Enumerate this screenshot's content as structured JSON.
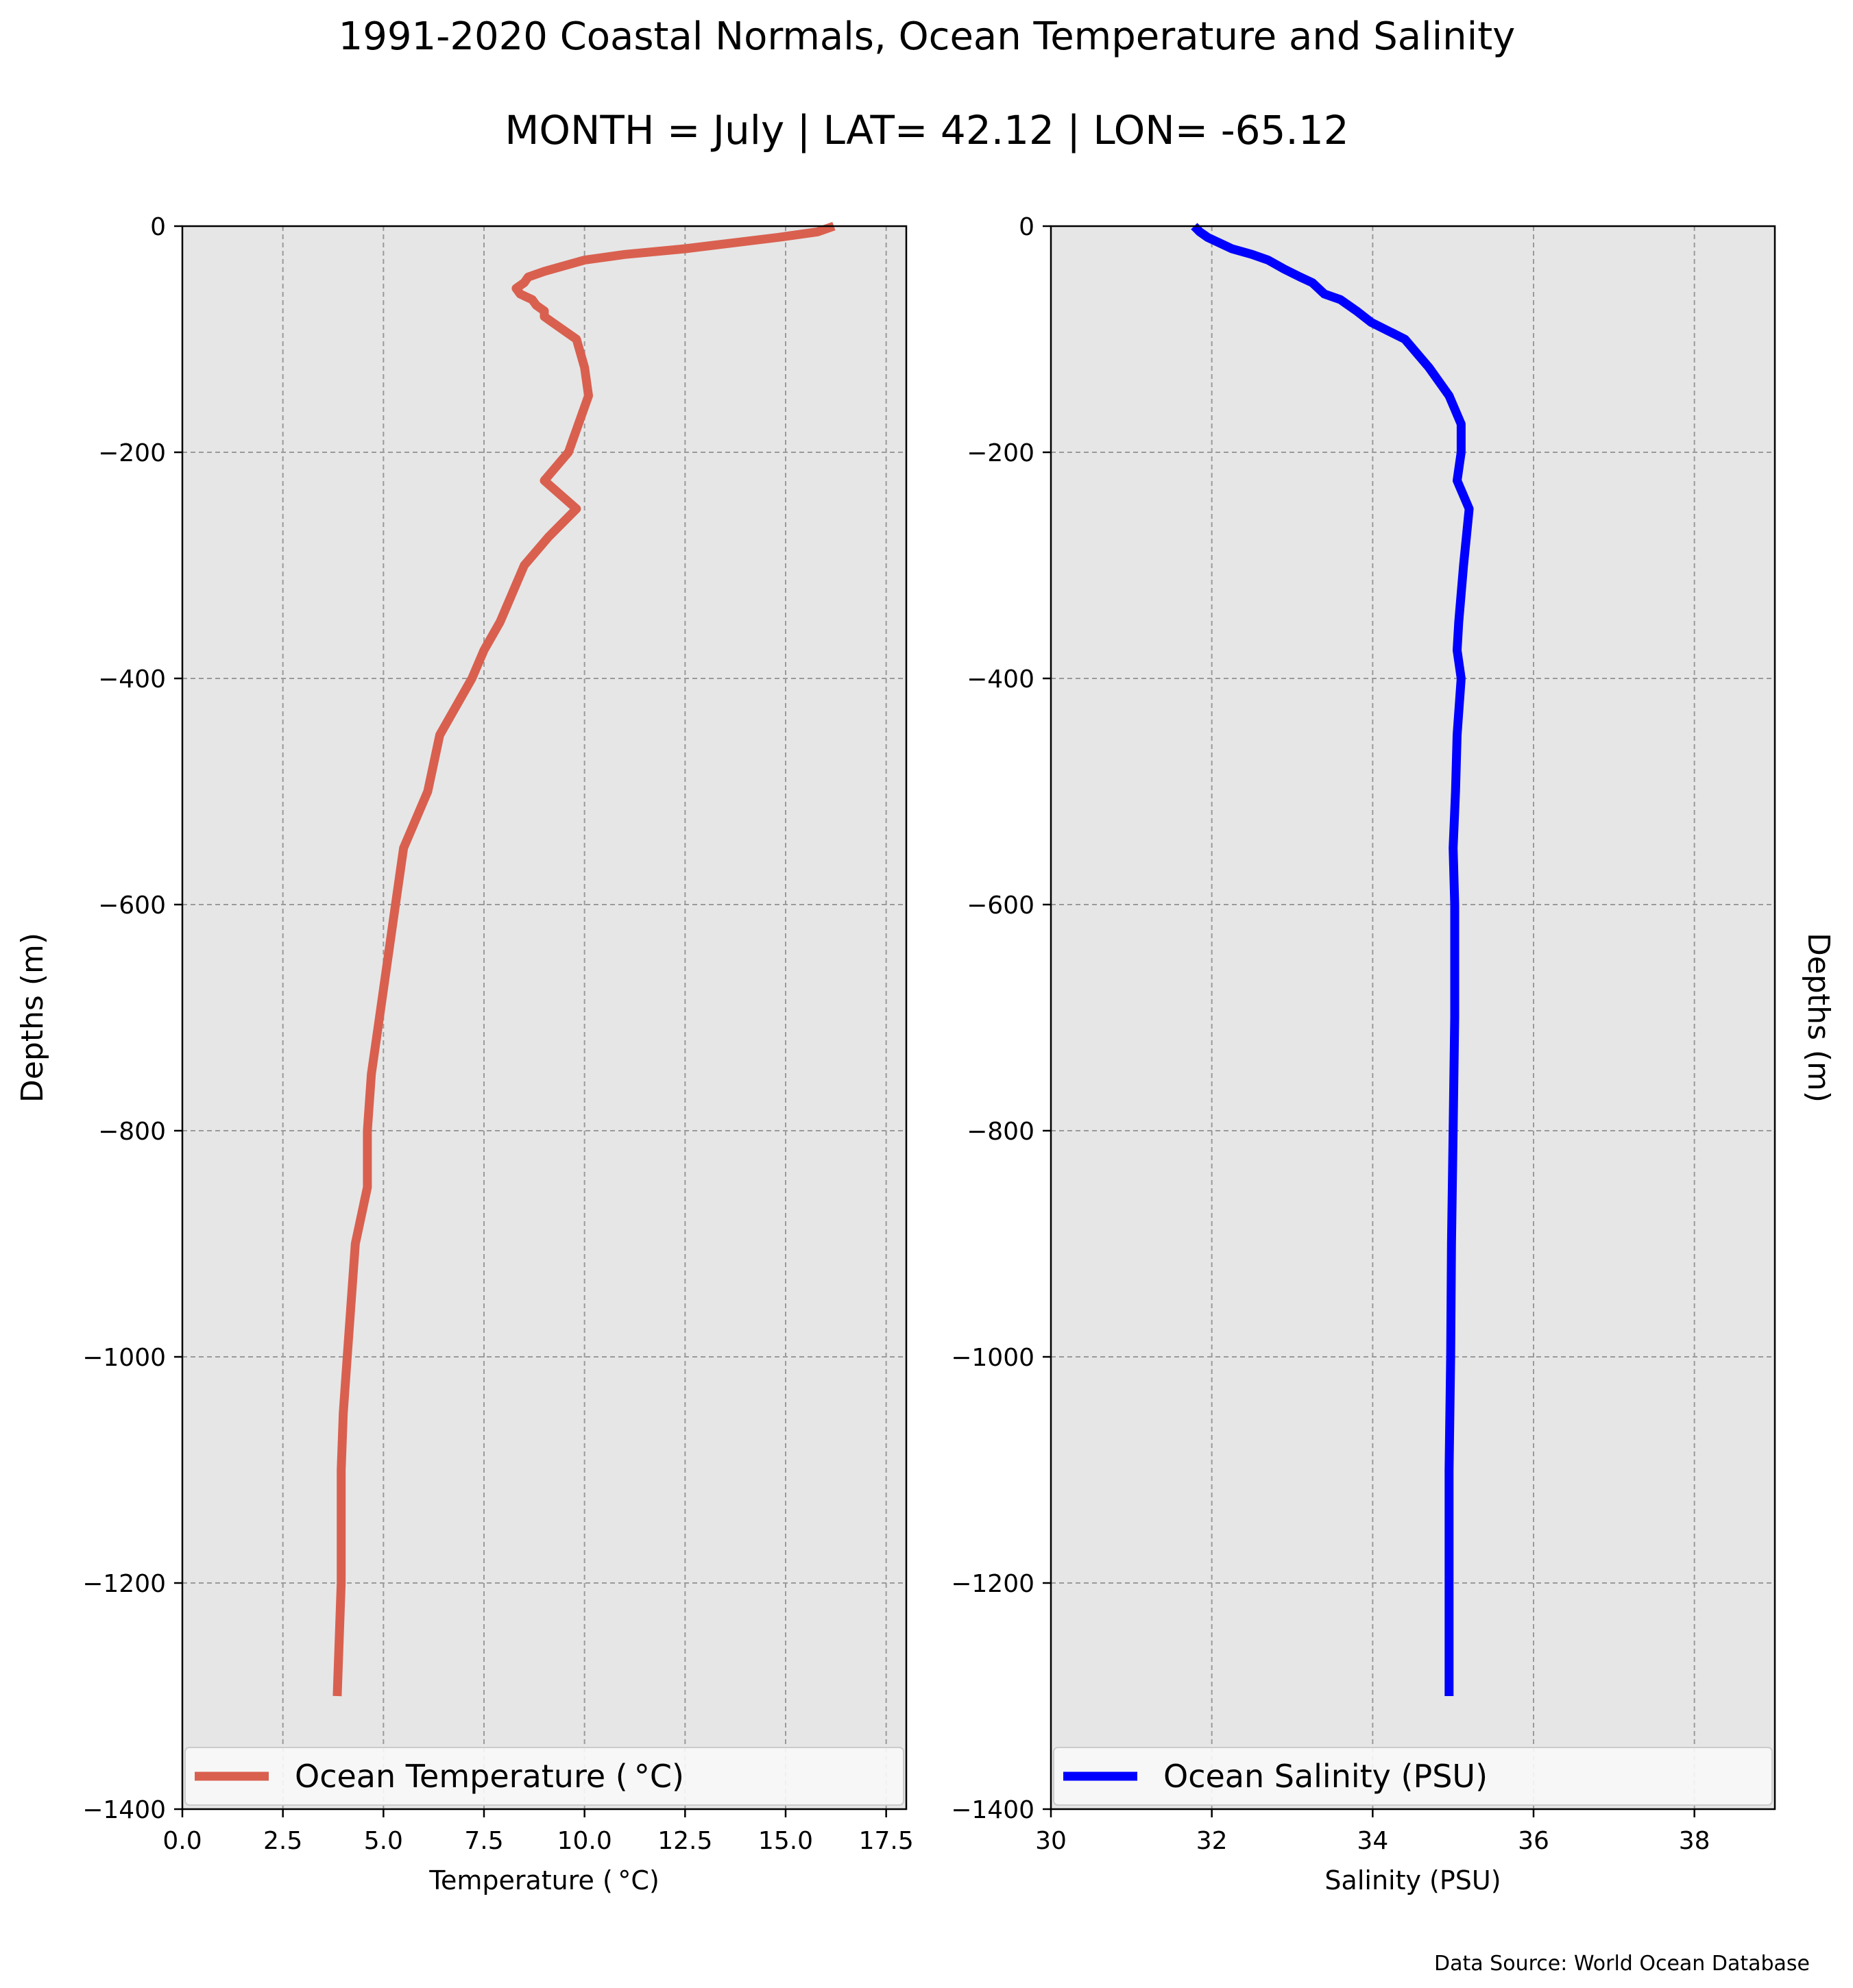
{
  "figure": {
    "title": "1991-2020 Coastal Normals, Ocean Temperature and Salinity",
    "subtitle": "MONTH = July | LAT= 42.12 | LON= -65.12",
    "source": "Data Source: World Ocean Database",
    "panel_background": "#e6e6e6"
  },
  "chart_data": [
    {
      "type": "line",
      "xlabel": "Temperature ( °C)",
      "ylabel": "Depths (m)",
      "xlim": [
        0,
        18
      ],
      "ylim": [
        -1400,
        0
      ],
      "xticks": [
        0,
        2.5,
        5,
        7.5,
        10,
        12.5,
        15,
        17.5
      ],
      "xtick_labels": [
        "0.0",
        "2.5",
        "5.0",
        "7.5",
        "10.0",
        "12.5",
        "15.0",
        "17.5"
      ],
      "yticks": [
        0,
        -200,
        -400,
        -600,
        -800,
        -1000,
        -1200,
        -1400
      ],
      "ytick_labels": [
        "0",
        "−200",
        "−400",
        "−600",
        "−800",
        "−1000",
        "−1200",
        "−1400"
      ],
      "grid": true,
      "legend_position": "bottom",
      "series": [
        {
          "name": "Ocean Temperature ( °C)",
          "color": "#d9604f",
          "points": [
            [
              16.2,
              0
            ],
            [
              15.8,
              -5
            ],
            [
              14.8,
              -10
            ],
            [
              12.5,
              -20
            ],
            [
              11.0,
              -25
            ],
            [
              10.0,
              -30
            ],
            [
              9.5,
              -35
            ],
            [
              9.0,
              -40
            ],
            [
              8.6,
              -45
            ],
            [
              8.5,
              -50
            ],
            [
              8.3,
              -55
            ],
            [
              8.4,
              -60
            ],
            [
              8.7,
              -65
            ],
            [
              8.8,
              -70
            ],
            [
              9.0,
              -75
            ],
            [
              9.0,
              -80
            ],
            [
              9.2,
              -85
            ],
            [
              9.8,
              -100
            ],
            [
              10.0,
              -125
            ],
            [
              10.1,
              -150
            ],
            [
              9.6,
              -200
            ],
            [
              9.0,
              -225
            ],
            [
              9.8,
              -250
            ],
            [
              9.1,
              -275
            ],
            [
              8.5,
              -300
            ],
            [
              7.9,
              -350
            ],
            [
              7.5,
              -375
            ],
            [
              7.2,
              -400
            ],
            [
              6.4,
              -450
            ],
            [
              6.1,
              -500
            ],
            [
              5.5,
              -550
            ],
            [
              5.3,
              -600
            ],
            [
              5.1,
              -650
            ],
            [
              4.9,
              -700
            ],
            [
              4.7,
              -750
            ],
            [
              4.6,
              -800
            ],
            [
              4.6,
              -850
            ],
            [
              4.3,
              -900
            ],
            [
              4.2,
              -950
            ],
            [
              4.1,
              -1000
            ],
            [
              4.0,
              -1050
            ],
            [
              3.95,
              -1100
            ],
            [
              3.95,
              -1150
            ],
            [
              3.95,
              -1200
            ],
            [
              3.9,
              -1250
            ],
            [
              3.85,
              -1300
            ]
          ]
        }
      ]
    },
    {
      "type": "line",
      "xlabel": "Salinity (PSU)",
      "ylabel": "Depths (m)",
      "xlim": [
        30,
        39
      ],
      "ylim": [
        -1400,
        0
      ],
      "xticks": [
        30,
        32,
        34,
        36,
        38
      ],
      "xtick_labels": [
        "30",
        "32",
        "34",
        "36",
        "38"
      ],
      "yticks": [
        0,
        -200,
        -400,
        -600,
        -800,
        -1000,
        -1200,
        -1400
      ],
      "ytick_labels": [
        "0",
        "−200",
        "−400",
        "−600",
        "−800",
        "−1000",
        "−1200",
        "−1400"
      ],
      "grid": true,
      "legend_position": "bottom",
      "series": [
        {
          "name": "Ocean Salinity (PSU)",
          "color": "#0000ff",
          "points": [
            [
              31.78,
              0
            ],
            [
              31.85,
              -5
            ],
            [
              31.95,
              -10
            ],
            [
              32.25,
              -20
            ],
            [
              32.5,
              -25
            ],
            [
              32.7,
              -30
            ],
            [
              32.9,
              -38
            ],
            [
              33.1,
              -45
            ],
            [
              33.25,
              -50
            ],
            [
              33.4,
              -60
            ],
            [
              33.6,
              -65
            ],
            [
              33.8,
              -75
            ],
            [
              33.98,
              -85
            ],
            [
              34.4,
              -100
            ],
            [
              34.7,
              -125
            ],
            [
              34.95,
              -150
            ],
            [
              35.1,
              -175
            ],
            [
              35.1,
              -200
            ],
            [
              35.05,
              -225
            ],
            [
              35.2,
              -250
            ],
            [
              35.13,
              -300
            ],
            [
              35.07,
              -350
            ],
            [
              35.05,
              -375
            ],
            [
              35.1,
              -400
            ],
            [
              35.05,
              -450
            ],
            [
              35.03,
              -500
            ],
            [
              35.0,
              -550
            ],
            [
              35.02,
              -600
            ],
            [
              35.02,
              -700
            ],
            [
              35.0,
              -800
            ],
            [
              34.98,
              -900
            ],
            [
              34.97,
              -1000
            ],
            [
              34.95,
              -1100
            ],
            [
              34.95,
              -1200
            ],
            [
              34.95,
              -1300
            ]
          ]
        }
      ]
    }
  ]
}
